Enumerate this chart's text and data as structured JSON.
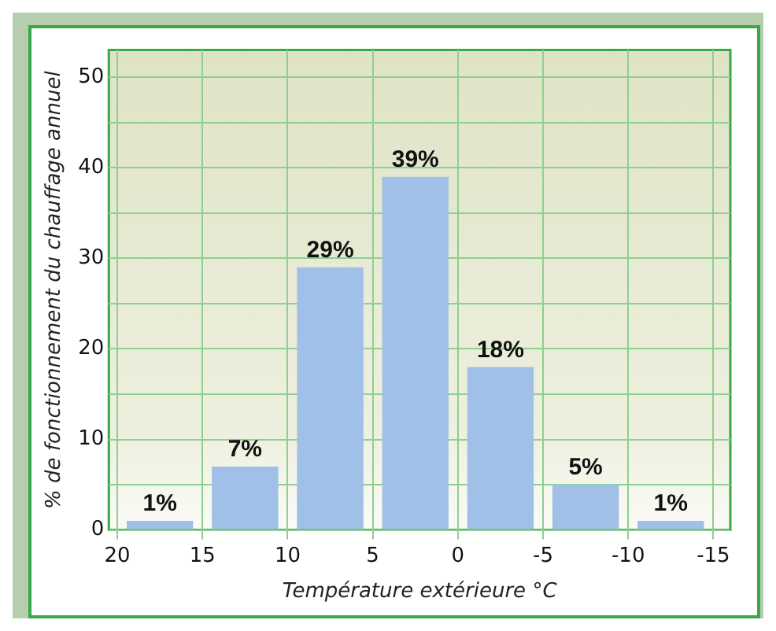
{
  "chart_data": {
    "type": "histogram",
    "xlabel": "Température extérieure °C",
    "ylabel": "% de fonctionnement du chauffage annuel",
    "bins": [
      20,
      15,
      10,
      5,
      0,
      -5,
      -10,
      -15
    ],
    "values": [
      1,
      7,
      29,
      39,
      18,
      5,
      1
    ],
    "value_labels": [
      "1%",
      "7%",
      "29%",
      "39%",
      "18%",
      "5%",
      "1%"
    ],
    "color": "#a0c0e8",
    "xlim": [
      20.5,
      -16
    ],
    "xticks": [
      20,
      15,
      10,
      5,
      0,
      -5,
      -10,
      -15
    ],
    "ylim": [
      0,
      53
    ],
    "yticks": [
      0,
      {
        "value": 5,
        "label": null
      },
      10,
      {
        "value": 15,
        "label": null
      },
      20,
      {
        "value": 25,
        "label": null
      },
      30,
      {
        "value": 35,
        "label": null
      },
      40,
      {
        "value": 45,
        "label": null
      },
      50
    ],
    "grid": true,
    "legend": false
  }
}
